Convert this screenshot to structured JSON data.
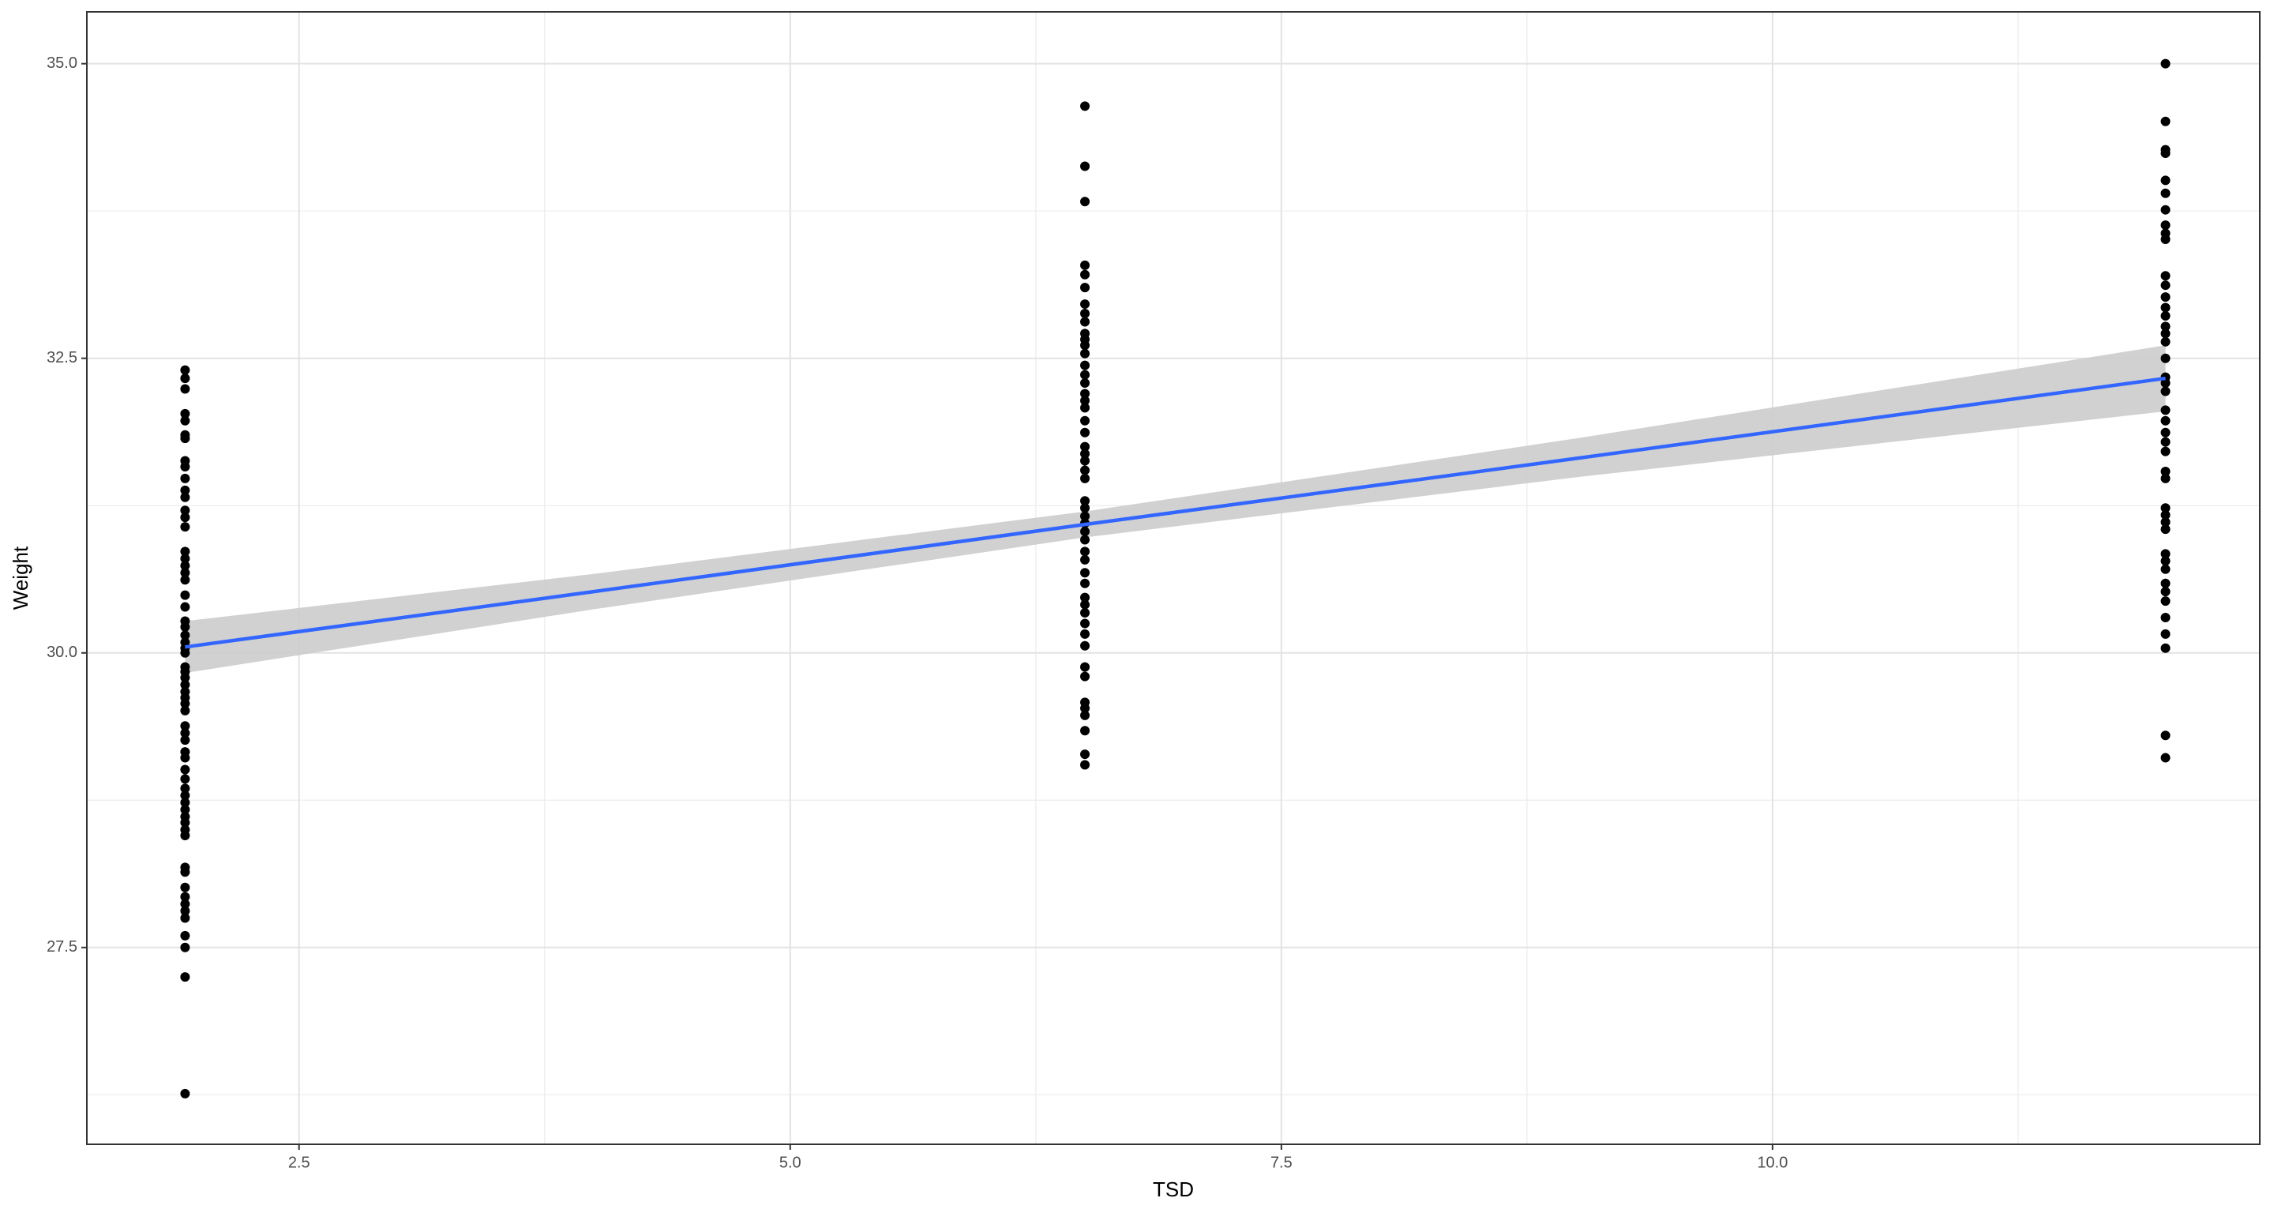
{
  "chart_data": {
    "type": "scatter",
    "x_label": "TSD",
    "y_label": "Weight",
    "xlim": [
      1.42,
      12.48
    ],
    "ylim": [
      25.83,
      35.44
    ],
    "xticks": [
      2.5,
      {
        "value": 5,
        "label": "5.0"
      },
      7.5,
      {
        "value": 10,
        "label": "10.0"
      }
    ],
    "yticks": [
      27.5,
      {
        "value": 30,
        "label": "30.0"
      },
      32.5,
      {
        "value": 35,
        "label": "35.0"
      }
    ],
    "x_minor_ticks": [
      3.75,
      6.25,
      8.75,
      11.25
    ],
    "y_minor_ticks": [
      26.25,
      28.75,
      31.25,
      33.75
    ],
    "grid": true,
    "point_color": "#000000",
    "line_color": "#3366ff",
    "band_color": "#cccccc",
    "points": [
      {
        "x": 1.92,
        "y": [
          32.4,
          32.33,
          32.24,
          32.03,
          31.97,
          31.85,
          31.82,
          31.63,
          31.58,
          31.48,
          31.38,
          31.32,
          31.21,
          31.15,
          31.07,
          30.86,
          30.8,
          30.74,
          30.68,
          30.62,
          30.49,
          30.39,
          30.27,
          30.22,
          30.15,
          30.09,
          30.04,
          30.0,
          29.88,
          29.84,
          29.79,
          29.73,
          29.67,
          29.62,
          29.57,
          29.51,
          29.38,
          29.32,
          29.26,
          29.16,
          29.11,
          29.01,
          28.93,
          28.85,
          28.79,
          28.73,
          28.67,
          28.61,
          28.56,
          28.5,
          28.45,
          28.18,
          28.14,
          28.01,
          27.93,
          27.87,
          27.81,
          27.75,
          27.6,
          27.5,
          27.25,
          26.26
        ]
      },
      {
        "x": 6.5,
        "y": [
          34.64,
          34.13,
          33.83,
          33.29,
          33.21,
          33.1,
          32.96,
          32.88,
          32.81,
          32.71,
          32.66,
          32.61,
          32.54,
          32.44,
          32.36,
          32.29,
          32.2,
          32.14,
          32.08,
          31.97,
          31.87,
          31.75,
          31.69,
          31.63,
          31.55,
          31.48,
          31.29,
          31.23,
          31.16,
          31.1,
          31.03,
          30.96,
          30.86,
          30.79,
          30.68,
          30.59,
          30.47,
          30.41,
          30.34,
          30.25,
          30.16,
          30.06,
          29.88,
          29.8,
          29.58,
          29.53,
          29.47,
          29.34,
          29.14,
          29.05
        ]
      },
      {
        "x": 12,
        "y": [
          35.0,
          34.51,
          34.27,
          34.24,
          34.01,
          33.9,
          33.76,
          33.63,
          33.56,
          33.51,
          33.2,
          33.12,
          33.02,
          32.93,
          32.86,
          32.77,
          32.71,
          32.64,
          32.5,
          32.34,
          32.29,
          32.22,
          32.06,
          31.97,
          31.87,
          31.79,
          31.71,
          31.54,
          31.48,
          31.23,
          31.17,
          31.11,
          31.05,
          30.84,
          30.78,
          30.71,
          30.59,
          30.52,
          30.44,
          30.3,
          30.16,
          30.04,
          29.3,
          29.11
        ]
      }
    ],
    "fit": {
      "x": [
        1.92,
        4,
        6.5,
        9,
        12
      ],
      "y": [
        30.05,
        30.52,
        31.09,
        31.65,
        32.33
      ],
      "lower": [
        29.83,
        30.37,
        30.98,
        31.49,
        32.05
      ],
      "upper": [
        30.27,
        30.67,
        31.2,
        31.82,
        32.61
      ]
    }
  }
}
